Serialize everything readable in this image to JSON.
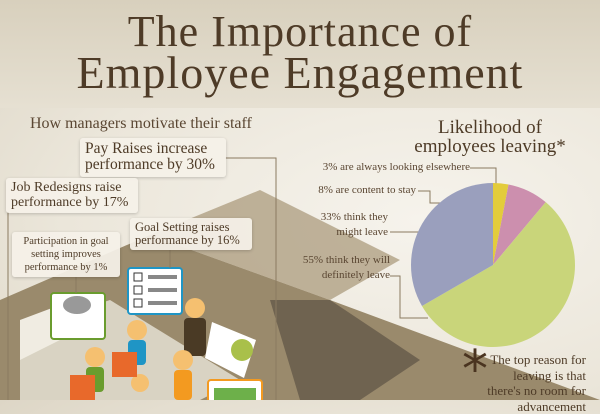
{
  "header": {
    "title_line1": "The Importance of",
    "title_line2": "Employee Engagement"
  },
  "motivation": {
    "heading": "How managers motivate their staff",
    "callouts": [
      {
        "line1": "Pay Raises increase",
        "line2": "performance by 30%"
      },
      {
        "line1": "Job Redesigns raise",
        "line2": "performance by 17%"
      },
      {
        "line1": "Goal Setting raises",
        "line2": "performance by 16%"
      },
      {
        "line1": "Participation in goal",
        "line2": "setting improves",
        "line3": "performance by 1%"
      }
    ]
  },
  "chart_data": {
    "type": "pie",
    "title": "Likelihood of employees leaving*",
    "title_line1": "Likelihood of",
    "title_line2": "employees leaving*",
    "slices": [
      {
        "label": "3% are always looking elsewhere",
        "value": 3,
        "color": "#e3cc3c"
      },
      {
        "label": "8% are content to stay",
        "value": 8,
        "color": "#cc8fae"
      },
      {
        "label": "55% think they will definitely leave",
        "value": 55,
        "color": "#c9d57a"
      },
      {
        "label": "33% think they might leave",
        "value": 33,
        "color": "#9a9fbd"
      }
    ],
    "label_lines": {
      "s0": "3% are always looking elsewhere",
      "s1": "8% are content to stay",
      "s3a": "33% think they",
      "s3b": "might leave",
      "s2a": "55% think they will",
      "s2b": "definitely leave"
    }
  },
  "footnote": {
    "symbol": "*",
    "line1": "The top reason for",
    "line2": "leaving is that",
    "line3": "there's no room for",
    "line4": "advancement"
  }
}
